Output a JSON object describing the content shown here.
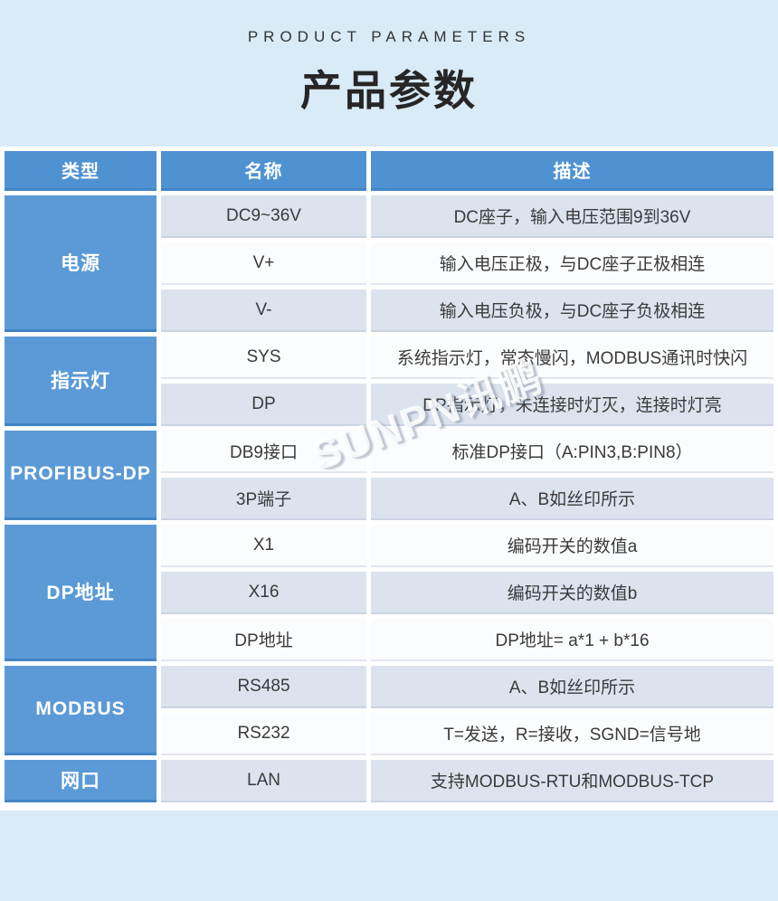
{
  "page": {
    "eyebrow": "PRODUCT PARAMETERS",
    "title": "产品参数",
    "watermark": "SUNPN讯鹏",
    "colors": {
      "page_bg": "#d8ebf7",
      "band_bg": "#ffffff",
      "header_blue": "#4f92d2",
      "group_blue": "#5b9ad7",
      "row_light": "#dce3ef",
      "row_white": "#fbfcfe",
      "text_dark": "#3a3a3a",
      "header_text": "#ffffff"
    }
  },
  "table": {
    "columns": [
      "类型",
      "名称",
      "描述"
    ],
    "groups": [
      {
        "label": "电源",
        "rowspan": 3
      },
      {
        "label": "指示灯",
        "rowspan": 2
      },
      {
        "label": "PROFIBUS-DP",
        "rowspan": 2
      },
      {
        "label": "DP地址",
        "rowspan": 3
      },
      {
        "label": "MODBUS",
        "rowspan": 2
      },
      {
        "label": "网口",
        "rowspan": 1
      }
    ],
    "rows": [
      {
        "name": "DC9~36V",
        "desc": "DC座子，输入电压范围9到36V"
      },
      {
        "name": "V+",
        "desc": "输入电压正极，与DC座子正极相连"
      },
      {
        "name": "V-",
        "desc": "输入电压负极，与DC座子负极相连"
      },
      {
        "name": "SYS",
        "desc": "系统指示灯，常态慢闪，MODBUS通讯时快闪"
      },
      {
        "name": "DP",
        "desc": "DP指示灯，未连接时灯灭，连接时灯亮"
      },
      {
        "name": "DB9接口",
        "desc": "标准DP接口（A:PIN3,B:PIN8）"
      },
      {
        "name": "3P端子",
        "desc": "A、B如丝印所示"
      },
      {
        "name": "X1",
        "desc": "编码开关的数值a"
      },
      {
        "name": "X16",
        "desc": "编码开关的数值b"
      },
      {
        "name": "DP地址",
        "desc": "DP地址= a*1 + b*16"
      },
      {
        "name": "RS485",
        "desc": "A、B如丝印所示"
      },
      {
        "name": "RS232",
        "desc": "T=发送，R=接收，SGND=信号地"
      },
      {
        "name": "LAN",
        "desc": "支持MODBUS-RTU和MODBUS-TCP"
      }
    ]
  }
}
